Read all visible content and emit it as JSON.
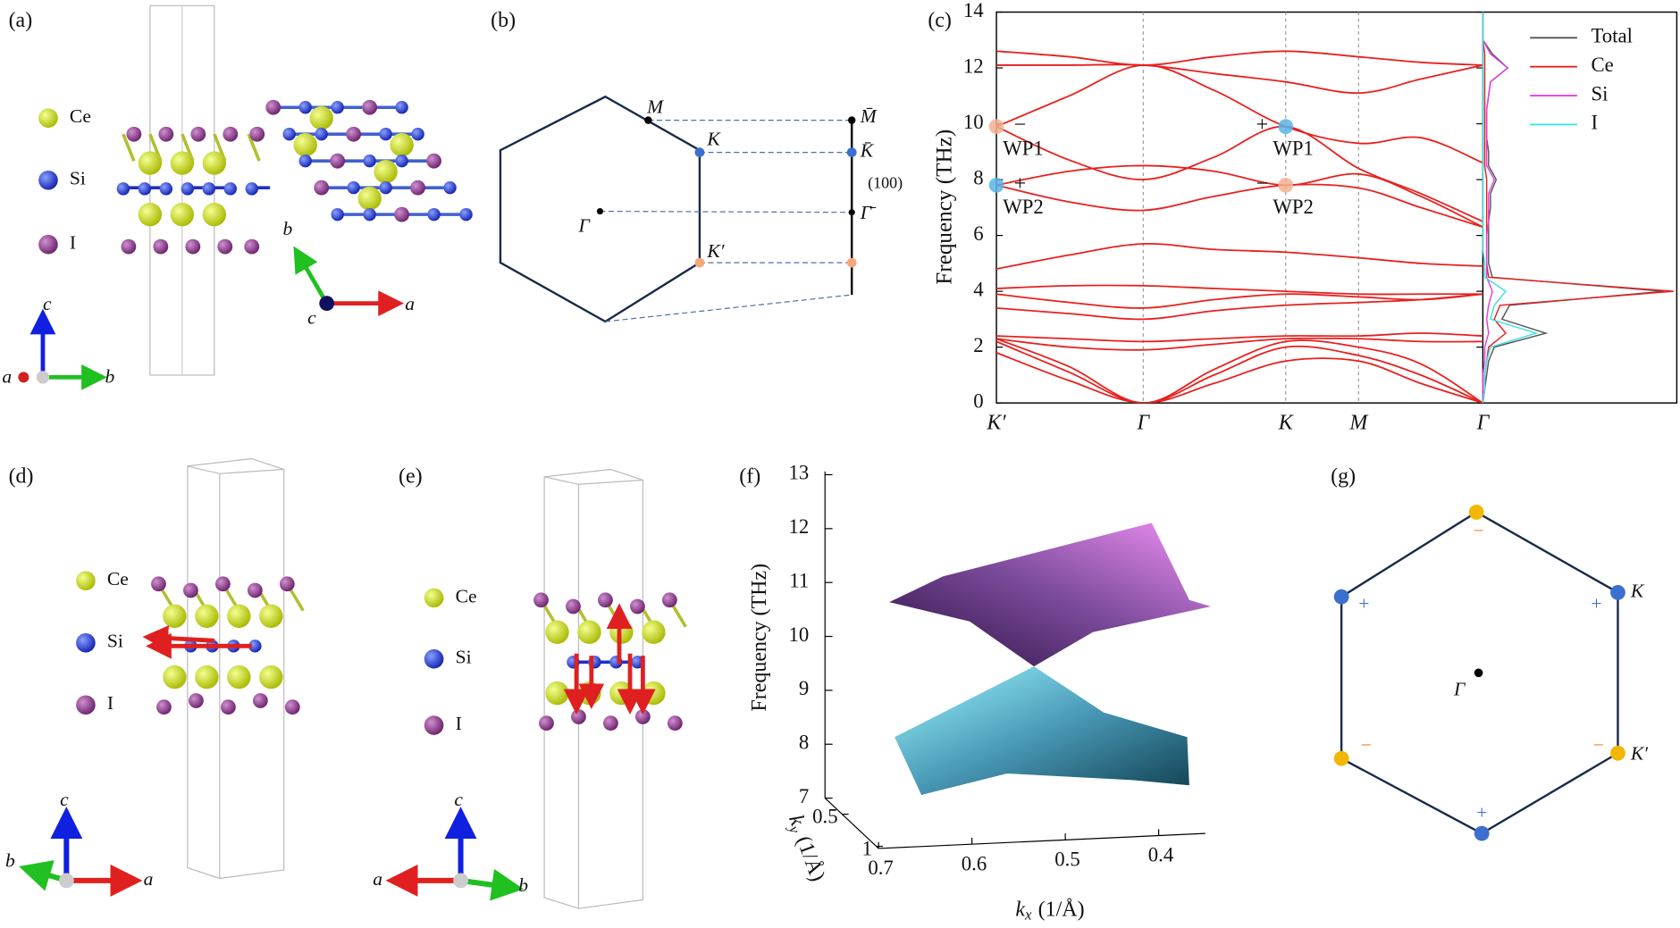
{
  "panels": {
    "a": {
      "label": "(a)",
      "legend": [
        "Ce",
        "Si",
        "I"
      ],
      "side_axes": [
        "c",
        "b",
        "a"
      ],
      "top_axes": [
        "b",
        "a",
        "c"
      ]
    },
    "b": {
      "label": "(b)",
      "bulk_points": [
        "M",
        "K",
        "Γ",
        "K′"
      ],
      "surface_points": [
        "M̄",
        "K̄",
        "Γ̄"
      ],
      "surface": "(100)"
    },
    "c": {
      "label": "(c)"
    },
    "d": {
      "label": "(d)",
      "legend": [
        "Ce",
        "Si",
        "I"
      ],
      "axes": [
        "c",
        "a",
        "b"
      ]
    },
    "e": {
      "label": "(e)",
      "legend": [
        "Ce",
        "Si",
        "I"
      ],
      "axes": [
        "c",
        "b",
        "a"
      ]
    },
    "f": {
      "label": "(f)",
      "frequency_axis": {
        "label": "Frequency (THz)",
        "range": [
          7,
          13
        ],
        "ticks": [
          7,
          8,
          9,
          10,
          11,
          12,
          13
        ]
      },
      "kx_axis": {
        "symbol": "k",
        "subscript": "x",
        "unit": "(1/Å)",
        "range": [
          0.7,
          0.35
        ],
        "ticks": [
          0.7,
          0.6,
          0.5,
          0.4
        ]
      },
      "ky_axis": {
        "symbol": "k",
        "subscript": "y",
        "unit": "(1/Å)",
        "range": [
          0.25,
          1
        ],
        "ticks": [
          0.5,
          1
        ]
      }
    },
    "g": {
      "label": "(g)",
      "points": [
        "K",
        "K′",
        "Γ"
      ],
      "charges": [
        "−",
        "+",
        "−",
        "+",
        "−",
        "+"
      ]
    }
  },
  "chart_data": {
    "type": "line",
    "ylabel": "Frequency (THz)",
    "categories": [
      "K′",
      null,
      "Γ",
      null,
      "K",
      "M",
      null,
      "Γ"
    ],
    "ylim": [
      0,
      14
    ],
    "yticks": [
      0,
      2,
      4,
      6,
      8,
      10,
      12,
      14
    ],
    "series": [
      {
        "color": "#e8201e",
        "values": [
          12.6,
          12.4,
          12.1,
          12.4,
          12.6,
          12.4,
          12.2,
          12.1
        ]
      },
      {
        "color": "#e8201e",
        "values": [
          12.1,
          12.1,
          12.1,
          11.8,
          11.5,
          11.1,
          11.6,
          12.1
        ]
      },
      {
        "color": "#e8201e",
        "values": [
          9.9,
          11.0,
          12.1,
          11.2,
          9.9,
          9.3,
          9.5,
          8.6
        ]
      },
      {
        "color": "#e8201e",
        "values": [
          9.9,
          8.7,
          8.0,
          8.8,
          9.9,
          8.4,
          7.5,
          6.5
        ]
      },
      {
        "color": "#e8201e",
        "values": [
          7.8,
          8.3,
          8.5,
          8.3,
          7.8,
          8.2,
          7.4,
          6.3
        ]
      },
      {
        "color": "#e8201e",
        "values": [
          7.8,
          7.2,
          6.9,
          7.4,
          7.8,
          7.7,
          7.0,
          6.3
        ]
      },
      {
        "color": "#e8201e",
        "values": [
          4.8,
          5.3,
          5.7,
          5.5,
          5.4,
          5.2,
          5.0,
          4.9
        ]
      },
      {
        "color": "#e8201e",
        "values": [
          4.1,
          4.2,
          4.2,
          4.1,
          4.0,
          3.9,
          3.9,
          3.9
        ]
      },
      {
        "color": "#e8201e",
        "values": [
          3.9,
          3.6,
          3.4,
          3.7,
          3.9,
          3.8,
          3.7,
          3.9
        ]
      },
      {
        "color": "#e8201e",
        "values": [
          3.4,
          3.2,
          3.0,
          3.3,
          3.5,
          3.6,
          3.7,
          3.9
        ]
      },
      {
        "color": "#e8201e",
        "values": [
          2.4,
          2.3,
          2.2,
          2.3,
          2.4,
          2.4,
          2.5,
          2.4
        ]
      },
      {
        "color": "#e8201e",
        "values": [
          2.3,
          2.0,
          1.9,
          2.1,
          2.3,
          2.3,
          2.2,
          2.2
        ]
      },
      {
        "color": "#e8201e",
        "values": [
          2.3,
          1.3,
          0,
          1.2,
          2.2,
          2.0,
          1.4,
          0
        ]
      },
      {
        "color": "#e8201e",
        "values": [
          2.2,
          1.1,
          0,
          1.0,
          2.0,
          1.7,
          1.0,
          0
        ]
      },
      {
        "color": "#e8201e",
        "values": [
          1.8,
          0.8,
          0,
          0.7,
          1.5,
          1.5,
          0.7,
          0
        ]
      }
    ],
    "weyl_points": [
      {
        "label": "WP1",
        "value": 9.9,
        "charge": "−",
        "color": "#f5b090"
      },
      {
        "label": "WP2",
        "value": 7.8,
        "charge": "+",
        "color": "#5ab4e8"
      },
      {
        "label": "WP1",
        "value": 9.9,
        "charge": "+",
        "color": "#5ab4e8"
      },
      {
        "label": "WP2",
        "value": 7.8,
        "charge": "−",
        "color": "#f5b090"
      }
    ],
    "dos": {
      "legend": "upper right",
      "xlim": [
        0,
        1
      ],
      "frequency": [
        0,
        0.5,
        1,
        1.5,
        2,
        2.5,
        3,
        3.5,
        4,
        4.5,
        5,
        5.5,
        6,
        6.5,
        7,
        7.5,
        8,
        8.5,
        9,
        9.5,
        10,
        10.5,
        11,
        11.5,
        12,
        12.5,
        13,
        13.5,
        14
      ],
      "series": [
        {
          "name": "Total",
          "color": "#555555",
          "values": [
            0,
            0.01,
            0.02,
            0.03,
            0.06,
            0.33,
            0.1,
            0.14,
            0.95,
            0.05,
            0.03,
            0.03,
            0.03,
            0.03,
            0.04,
            0.04,
            0.07,
            0.03,
            0.03,
            0.02,
            0.02,
            0.02,
            0.03,
            0.04,
            0.13,
            0.05,
            0,
            0,
            0
          ]
        },
        {
          "name": "Ce",
          "color": "#e8201e",
          "values": [
            0,
            0.01,
            0.01,
            0.02,
            0.03,
            0.12,
            0.06,
            0.09,
            1.0,
            0.03,
            0.02,
            0.02,
            0.02,
            0.02,
            0.02,
            0.02,
            0.02,
            0.01,
            0.01,
            0.01,
            0.01,
            0.01,
            0.01,
            0.01,
            0.01,
            0.01,
            0,
            0,
            0
          ]
        },
        {
          "name": "Si",
          "color": "#e040e0",
          "values": [
            0,
            0,
            0,
            0.01,
            0.01,
            0.03,
            0.02,
            0.03,
            0.05,
            0.02,
            0.02,
            0.02,
            0.02,
            0.03,
            0.03,
            0.03,
            0.06,
            0.02,
            0.02,
            0.02,
            0.02,
            0.02,
            0.03,
            0.04,
            0.13,
            0.04,
            0,
            0,
            0
          ]
        },
        {
          "name": "I",
          "color": "#40e0e0",
          "values": [
            0,
            0.01,
            0.01,
            0.02,
            0.04,
            0.28,
            0.04,
            0.06,
            0.12,
            0.01,
            0.01,
            0,
            0,
            0,
            0,
            0,
            0,
            0,
            0,
            0,
            0,
            0,
            0,
            0,
            0,
            0,
            0,
            0,
            0
          ]
        }
      ]
    }
  }
}
